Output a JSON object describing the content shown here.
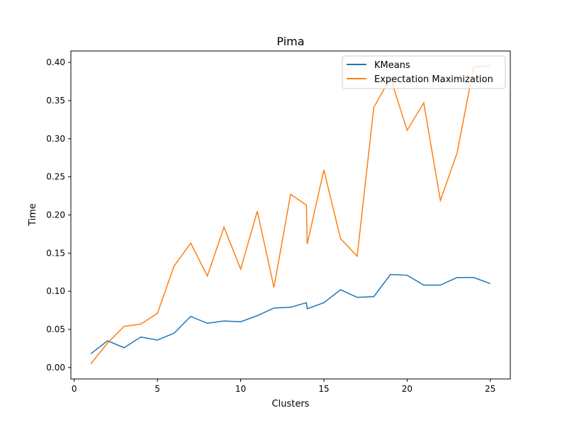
{
  "chart_data": {
    "type": "line",
    "title": "Pima",
    "xlabel": "Clusters",
    "ylabel": "Time",
    "xlim": [
      -0.2,
      26.2
    ],
    "ylim": [
      -0.015,
      0.415
    ],
    "xticks": [
      0,
      5,
      10,
      15,
      20,
      25
    ],
    "yticks": [
      0.0,
      0.05,
      0.1,
      0.15,
      0.2,
      0.25,
      0.3,
      0.35,
      0.4
    ],
    "ytick_labels": [
      "0.00",
      "0.05",
      "0.10",
      "0.15",
      "0.20",
      "0.25",
      "0.30",
      "0.35",
      "0.40"
    ],
    "grid": false,
    "legend": "top-right",
    "series": [
      {
        "name": "KMeans",
        "color": "#1f77b4",
        "points": [
          [
            1,
            0.018
          ],
          [
            2,
            0.035
          ],
          [
            3,
            0.026
          ],
          [
            4,
            0.04
          ],
          [
            5,
            0.036
          ],
          [
            6,
            0.045
          ],
          [
            7,
            0.067
          ],
          [
            8,
            0.058
          ],
          [
            9,
            0.061
          ],
          [
            10,
            0.06
          ],
          [
            11,
            0.068
          ],
          [
            12,
            0.078
          ],
          [
            13,
            0.079
          ],
          [
            13.95,
            0.085
          ],
          [
            14,
            0.077
          ],
          [
            15,
            0.085
          ],
          [
            16,
            0.102
          ],
          [
            17,
            0.092
          ],
          [
            18,
            0.093
          ],
          [
            19,
            0.122
          ],
          [
            20,
            0.121
          ],
          [
            21,
            0.108
          ],
          [
            22,
            0.108
          ],
          [
            23,
            0.118
          ],
          [
            24,
            0.118
          ],
          [
            25,
            0.11
          ]
        ]
      },
      {
        "name": "Expectation Maximization",
        "color": "#ff7f0e",
        "points": [
          [
            1,
            0.005
          ],
          [
            2,
            0.032
          ],
          [
            3,
            0.054
          ],
          [
            4,
            0.057
          ],
          [
            5,
            0.071
          ],
          [
            6,
            0.133
          ],
          [
            7,
            0.163
          ],
          [
            8,
            0.12
          ],
          [
            9,
            0.184
          ],
          [
            10,
            0.129
          ],
          [
            11,
            0.205
          ],
          [
            12,
            0.105
          ],
          [
            13,
            0.227
          ],
          [
            13.95,
            0.213
          ],
          [
            14,
            0.162
          ],
          [
            15,
            0.259
          ],
          [
            16,
            0.169
          ],
          [
            17,
            0.146
          ],
          [
            18,
            0.341
          ],
          [
            19,
            0.38
          ],
          [
            20,
            0.311
          ],
          [
            21,
            0.347
          ],
          [
            22,
            0.219
          ],
          [
            23,
            0.281
          ],
          [
            24,
            0.394
          ],
          [
            25,
            0.396
          ]
        ]
      }
    ]
  }
}
